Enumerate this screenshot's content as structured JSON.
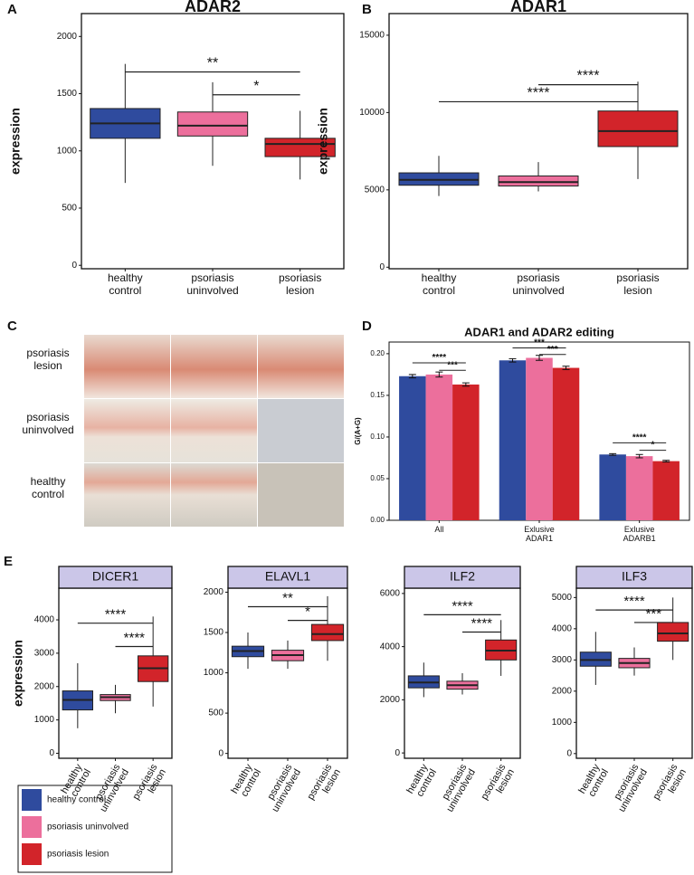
{
  "chart_data": [
    {
      "type": "box",
      "panel": "A",
      "title": "ADAR2",
      "y_label": "expression",
      "categories": [
        "healthy control",
        "psoriasis uninvolved",
        "psoriasis lesion"
      ],
      "boxes": [
        {
          "whisker_low": 720,
          "q1": 1110,
          "median": 1240,
          "q3": 1370,
          "whisker_high": 1760,
          "color": "#2f4b9e"
        },
        {
          "whisker_low": 870,
          "q1": 1130,
          "median": 1220,
          "q3": 1340,
          "whisker_high": 1600,
          "color": "#ec6f9c"
        },
        {
          "whisker_low": 750,
          "q1": 950,
          "median": 1060,
          "q3": 1110,
          "whisker_high": 1350,
          "color": "#d2242a"
        }
      ],
      "ylim": [
        -30,
        2200
      ],
      "yticks": [
        0,
        500,
        1000,
        1500,
        2000
      ],
      "annotations": [
        {
          "text": "**",
          "from": 0,
          "to": 2,
          "y": 1690
        },
        {
          "text": "*",
          "from": 1,
          "to": 2,
          "y": 1490
        }
      ]
    },
    {
      "type": "box",
      "panel": "B",
      "title": "ADAR1",
      "y_label": "expression",
      "categories": [
        "healthy control",
        "psoriasis uninvolved",
        "psoriasis lesion"
      ],
      "boxes": [
        {
          "whisker_low": 4600,
          "q1": 5300,
          "median": 5650,
          "q3": 6100,
          "whisker_high": 7200,
          "color": "#2f4b9e"
        },
        {
          "whisker_low": 4900,
          "q1": 5250,
          "median": 5500,
          "q3": 5900,
          "whisker_high": 6800,
          "color": "#ec6f9c"
        },
        {
          "whisker_low": 5700,
          "q1": 7800,
          "median": 8800,
          "q3": 10100,
          "whisker_high": 12000,
          "color": "#d2242a"
        }
      ],
      "ylim": [
        -100,
        16400
      ],
      "yticks": [
        0,
        5000,
        10000,
        15000
      ],
      "annotations": [
        {
          "text": "****",
          "from": 0,
          "to": 2,
          "y": 10700
        },
        {
          "text": "****",
          "from": 1,
          "to": 2,
          "y": 11800
        }
      ]
    },
    {
      "type": "grouped_bar",
      "panel": "D",
      "title": "ADAR1 and ADAR2 editing",
      "y_label": "G/(A+G)",
      "categories": [
        "All",
        "Exlusive ADAR1",
        "Exlusive ADARB1"
      ],
      "series": [
        {
          "color": "#2f4b9e",
          "values": [
            0.173,
            0.192,
            0.079
          ],
          "errors": [
            0.002,
            0.002,
            0.001
          ]
        },
        {
          "color": "#ec6f9c",
          "values": [
            0.175,
            0.195,
            0.077
          ],
          "errors": [
            0.003,
            0.003,
            0.002
          ]
        },
        {
          "color": "#d2242a",
          "values": [
            0.163,
            0.183,
            0.071
          ],
          "errors": [
            0.002,
            0.002,
            0.001
          ]
        }
      ],
      "ylim": [
        0,
        0.214
      ],
      "yticks": [
        {
          "value": 0,
          "label": "0.00"
        },
        {
          "value": 0.05,
          "label": "0.05"
        },
        {
          "value": 0.1,
          "label": "0.10"
        },
        {
          "value": 0.15,
          "label": "0.15"
        },
        {
          "value": 0.2,
          "label": "0.20"
        }
      ],
      "annotations": [
        {
          "text": "****",
          "category": 0,
          "from": 0,
          "to": 2,
          "y": 0.189
        },
        {
          "text": "***",
          "category": 0,
          "from": 1,
          "to": 2,
          "y": 0.18
        },
        {
          "text": "***",
          "category": 1,
          "from": 0,
          "to": 2,
          "y": 0.207
        },
        {
          "text": "***",
          "category": 1,
          "from": 1,
          "to": 2,
          "y": 0.199
        },
        {
          "text": "****",
          "category": 2,
          "from": 0,
          "to": 2,
          "y": 0.093
        },
        {
          "text": "*",
          "category": 2,
          "from": 1,
          "to": 2,
          "y": 0.084
        }
      ]
    },
    {
      "type": "box",
      "panel": "E",
      "title": "DICER1",
      "y_label": "expression",
      "categories": [
        "healthy control",
        "psoriasis uninvolved",
        "psoriasis lesion"
      ],
      "boxes": [
        {
          "whisker_low": 750,
          "q1": 1300,
          "median": 1600,
          "q3": 1870,
          "whisker_high": 2700,
          "color": "#2f4b9e"
        },
        {
          "whisker_low": 1200,
          "q1": 1580,
          "median": 1680,
          "q3": 1760,
          "whisker_high": 2050,
          "color": "#ec6f9c"
        },
        {
          "whisker_low": 1400,
          "q1": 2150,
          "median": 2550,
          "q3": 2920,
          "whisker_high": 4100,
          "color": "#d2242a"
        }
      ],
      "ylim": [
        -150,
        4950
      ],
      "yticks": [
        0,
        1000,
        2000,
        3000,
        4000
      ],
      "annotations": [
        {
          "text": "****",
          "from": 0,
          "to": 2,
          "y": 3900
        },
        {
          "text": "****",
          "from": 1,
          "to": 2,
          "y": 3200
        }
      ]
    },
    {
      "type": "box",
      "title": "ELAVL1",
      "categories": [
        "healthy control",
        "psoriasis uninvolved",
        "psoriasis lesion"
      ],
      "boxes": [
        {
          "whisker_low": 1050,
          "q1": 1200,
          "median": 1270,
          "q3": 1330,
          "whisker_high": 1500,
          "color": "#2f4b9e"
        },
        {
          "whisker_low": 1050,
          "q1": 1150,
          "median": 1220,
          "q3": 1280,
          "whisker_high": 1400,
          "color": "#ec6f9c"
        },
        {
          "whisker_low": 1150,
          "q1": 1400,
          "median": 1480,
          "q3": 1600,
          "whisker_high": 1950,
          "color": "#d2242a"
        }
      ],
      "ylim": [
        -60,
        2050
      ],
      "yticks": [
        0,
        500,
        1000,
        1500,
        2000
      ],
      "annotations": [
        {
          "text": "**",
          "from": 0,
          "to": 2,
          "y": 1820
        },
        {
          "text": "*",
          "from": 1,
          "to": 2,
          "y": 1650
        }
      ]
    },
    {
      "type": "box",
      "title": "ILF2",
      "categories": [
        "healthy control",
        "psoriasis uninvolved",
        "psoriasis lesion"
      ],
      "boxes": [
        {
          "whisker_low": 2100,
          "q1": 2450,
          "median": 2650,
          "q3": 2900,
          "whisker_high": 3400,
          "color": "#2f4b9e"
        },
        {
          "whisker_low": 2200,
          "q1": 2400,
          "median": 2550,
          "q3": 2700,
          "whisker_high": 3000,
          "color": "#ec6f9c"
        },
        {
          "whisker_low": 2900,
          "q1": 3500,
          "median": 3850,
          "q3": 4250,
          "whisker_high": 5000,
          "color": "#d2242a"
        }
      ],
      "ylim": [
        -200,
        6200
      ],
      "yticks": [
        0,
        2000,
        4000,
        6000
      ],
      "annotations": [
        {
          "text": "****",
          "from": 0,
          "to": 2,
          "y": 5200
        },
        {
          "text": "****",
          "from": 1,
          "to": 2,
          "y": 4550
        }
      ]
    },
    {
      "type": "box",
      "title": "ILF3",
      "categories": [
        "healthy control",
        "psoriasis uninvolved",
        "psoriasis lesion"
      ],
      "boxes": [
        {
          "whisker_low": 2200,
          "q1": 2800,
          "median": 3000,
          "q3": 3250,
          "whisker_high": 3900,
          "color": "#2f4b9e"
        },
        {
          "whisker_low": 2500,
          "q1": 2750,
          "median": 2900,
          "q3": 3050,
          "whisker_high": 3400,
          "color": "#ec6f9c"
        },
        {
          "whisker_low": 3000,
          "q1": 3600,
          "median": 3850,
          "q3": 4200,
          "whisker_high": 5000,
          "color": "#d2242a"
        }
      ],
      "ylim": [
        -150,
        5300
      ],
      "yticks": [
        0,
        1000,
        2000,
        3000,
        4000,
        5000
      ],
      "annotations": [
        {
          "text": "****",
          "from": 0,
          "to": 2,
          "y": 4600
        },
        {
          "text": "***",
          "from": 1,
          "to": 2,
          "y": 4200
        }
      ]
    }
  ],
  "image_panel": {
    "panel": "C",
    "row_labels": [
      "psoriasis lesion",
      "psoriasis uninvolved",
      "healthy control"
    ]
  },
  "legend": {
    "entries": [
      {
        "label": "healthy control",
        "color": "#2f4b9e"
      },
      {
        "label": "psoriasis uninvolved",
        "color": "#ec6f9c"
      },
      {
        "label": "psoriasis lesion",
        "color": "#d2242a"
      }
    ]
  }
}
